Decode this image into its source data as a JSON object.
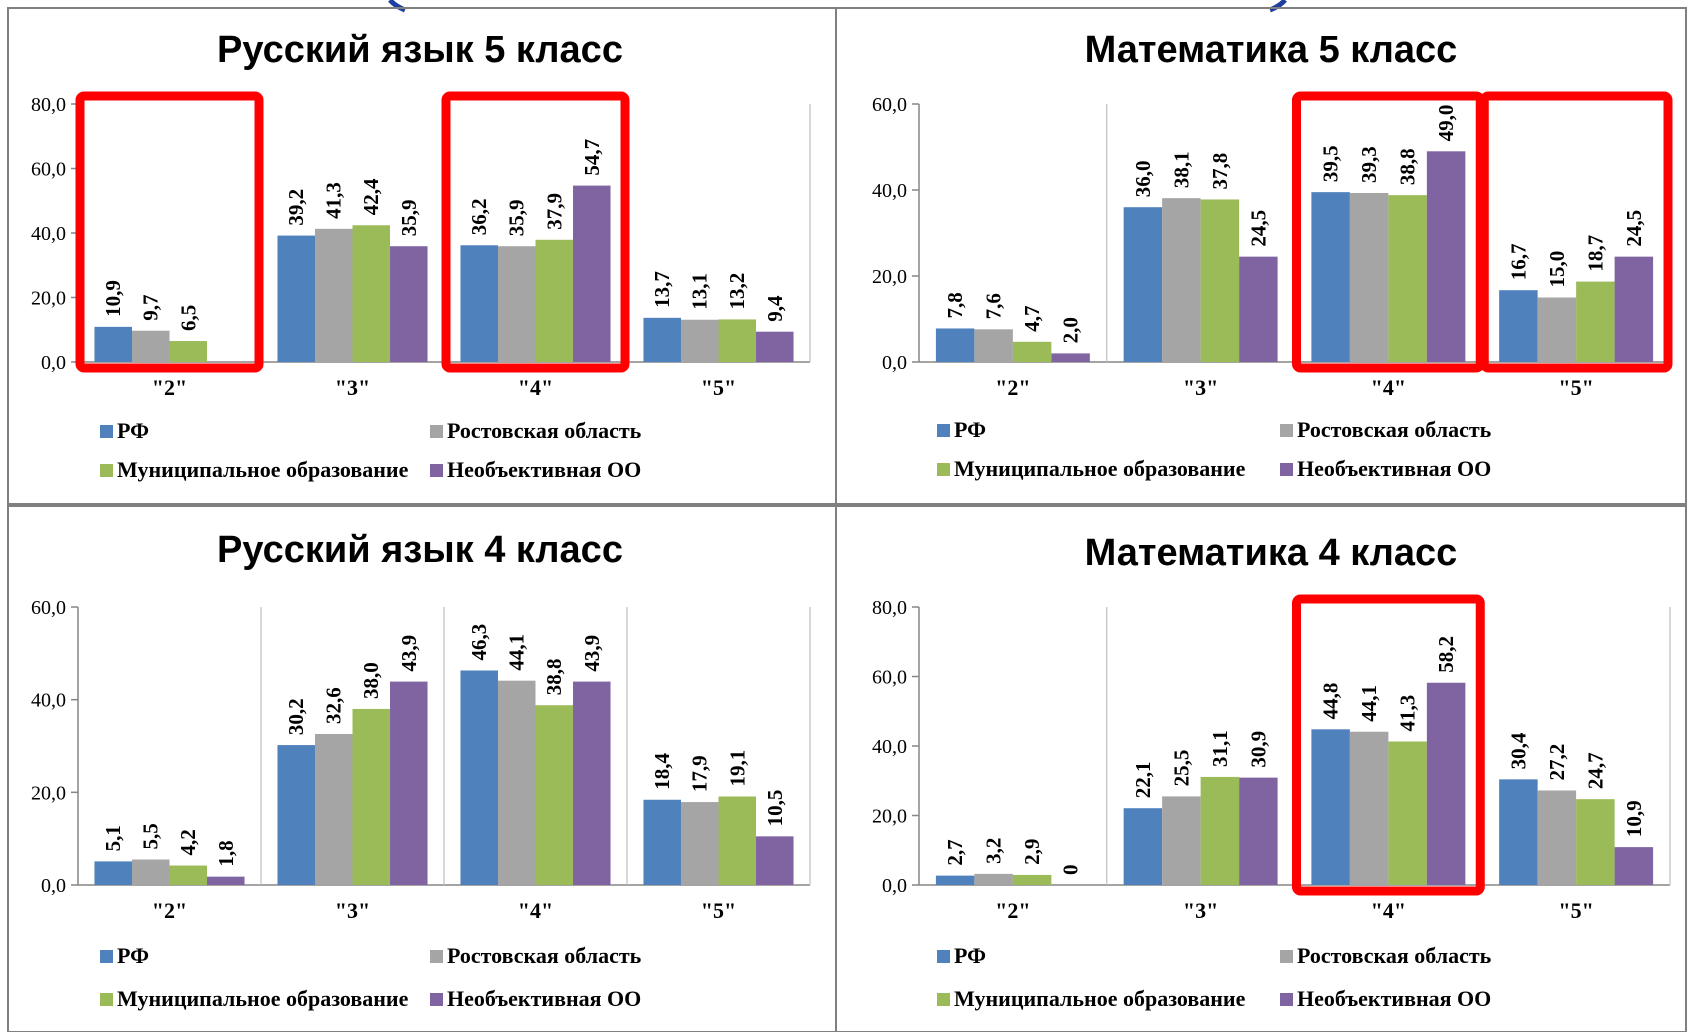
{
  "colors": {
    "rf": "#4F81BD",
    "rostov": "#A5A5A5",
    "municipal": "#9BBB59",
    "school": "#8064A2",
    "highlight": "#FF0000",
    "panel_border": "#808080",
    "top_arc": "#1F3FA0"
  },
  "chart_data": [
    {
      "type": "bar",
      "title": "Русский язык 5 класс",
      "categories": [
        "\"2\"",
        "\"3\"",
        "\"4\"",
        "\"5\""
      ],
      "ylim": [
        0,
        80
      ],
      "yticks": [
        "0,0",
        "20,0",
        "40,0",
        "60,0",
        "80,0"
      ],
      "series": [
        {
          "name": "РФ",
          "values": [
            10.9,
            39.2,
            36.2,
            13.7
          ],
          "labels": [
            "10,9",
            "39,2",
            "36,2",
            "13,7"
          ]
        },
        {
          "name": "Ростовская область",
          "values": [
            9.7,
            41.3,
            35.9,
            13.1
          ],
          "labels": [
            "9,7",
            "41,3",
            "35,9",
            "13,1"
          ]
        },
        {
          "name": "Муниципальное образование",
          "values": [
            6.5,
            42.4,
            37.9,
            13.2
          ],
          "labels": [
            "6,5",
            "42,4",
            "37,9",
            "13,2"
          ]
        },
        {
          "name": "Необъективная ОО",
          "values": [
            null,
            35.9,
            54.7,
            9.4
          ],
          "labels": [
            null,
            "35,9",
            "54,7",
            "9,4"
          ]
        }
      ],
      "highlighted_categories": [
        "\"2\"",
        "\"4\""
      ],
      "legend": "bottom",
      "grid": false
    },
    {
      "type": "bar",
      "title": "Математика 5 класс",
      "categories": [
        "\"2\"",
        "\"3\"",
        "\"4\"",
        "\"5\""
      ],
      "ylim": [
        0,
        60
      ],
      "yticks": [
        "0,0",
        "20,0",
        "40,0",
        "60,0"
      ],
      "series": [
        {
          "name": "РФ",
          "values": [
            7.8,
            36.0,
            39.5,
            16.7
          ],
          "labels": [
            "7,8",
            "36,0",
            "39,5",
            "16,7"
          ]
        },
        {
          "name": "Ростовская область",
          "values": [
            7.6,
            38.1,
            39.3,
            15.0
          ],
          "labels": [
            "7,6",
            "38,1",
            "39,3",
            "15,0"
          ]
        },
        {
          "name": "Муниципальное образование",
          "values": [
            4.7,
            37.8,
            38.8,
            18.7
          ],
          "labels": [
            "4,7",
            "37,8",
            "38,8",
            "18,7"
          ]
        },
        {
          "name": "Необъективная ОО",
          "values": [
            2.0,
            24.5,
            49.0,
            24.5
          ],
          "labels": [
            "2,0",
            "24,5",
            "49,0",
            "24,5"
          ]
        }
      ],
      "highlighted_categories": [
        "\"4\"",
        "\"5\""
      ],
      "legend": "bottom",
      "grid": false
    },
    {
      "type": "bar",
      "title": "Русский язык 4 класс",
      "categories": [
        "\"2\"",
        "\"3\"",
        "\"4\"",
        "\"5\""
      ],
      "ylim": [
        0,
        60
      ],
      "yticks": [
        "0,0",
        "20,0",
        "40,0",
        "60,0"
      ],
      "series": [
        {
          "name": "РФ",
          "values": [
            5.1,
            30.2,
            46.3,
            18.4
          ],
          "labels": [
            "5,1",
            "30,2",
            "46,3",
            "18,4"
          ]
        },
        {
          "name": "Ростовская область",
          "values": [
            5.5,
            32.6,
            44.1,
            17.9
          ],
          "labels": [
            "5,5",
            "32,6",
            "44,1",
            "17,9"
          ]
        },
        {
          "name": "Муниципальное образование",
          "values": [
            4.2,
            38.0,
            38.8,
            19.1
          ],
          "labels": [
            "4,2",
            "38,0",
            "38,8",
            "19,1"
          ]
        },
        {
          "name": "Необъективная ОО",
          "values": [
            1.8,
            43.9,
            43.9,
            10.5
          ],
          "labels": [
            "1,8",
            "43,9",
            "43,9",
            "10,5"
          ]
        }
      ],
      "highlighted_categories": [],
      "legend": "bottom",
      "grid": false
    },
    {
      "type": "bar",
      "title": "Математика 4 класс",
      "categories": [
        "\"2\"",
        "\"3\"",
        "\"4\"",
        "\"5\""
      ],
      "ylim": [
        0,
        80
      ],
      "yticks": [
        "0,0",
        "20,0",
        "40,0",
        "60,0",
        "80,0"
      ],
      "series": [
        {
          "name": "РФ",
          "values": [
            2.7,
            22.1,
            44.8,
            30.4
          ],
          "labels": [
            "2,7",
            "22,1",
            "44,8",
            "30,4"
          ]
        },
        {
          "name": "Ростовская область",
          "values": [
            3.2,
            25.5,
            44.1,
            27.2
          ],
          "labels": [
            "3,2",
            "25,5",
            "44,1",
            "27,2"
          ]
        },
        {
          "name": "Муниципальное образование",
          "values": [
            2.9,
            31.1,
            41.3,
            24.7
          ],
          "labels": [
            "2,9",
            "31,1",
            "41,3",
            "24,7"
          ]
        },
        {
          "name": "Необъективная ОО",
          "values": [
            0,
            30.9,
            58.2,
            10.9
          ],
          "labels": [
            "0",
            "30,9",
            "58,2",
            "10,9"
          ]
        }
      ],
      "highlighted_categories": [
        "\"4\""
      ],
      "legend": "bottom",
      "grid": false
    }
  ]
}
